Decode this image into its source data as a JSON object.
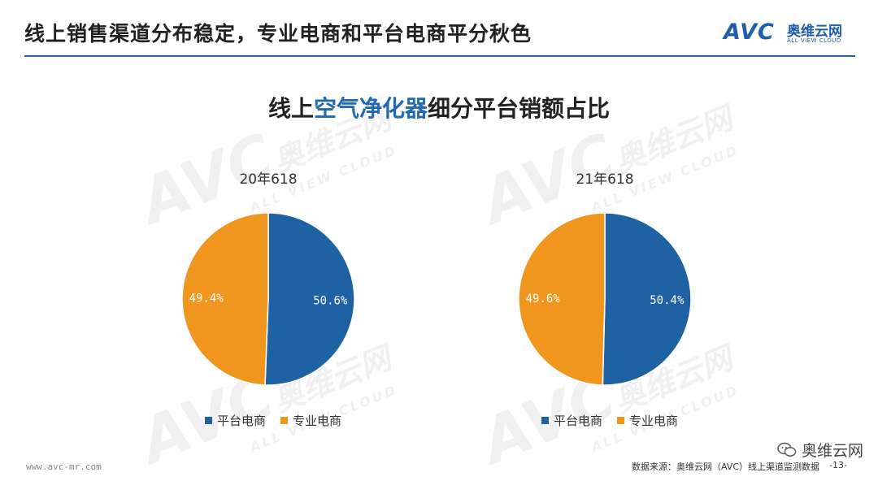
{
  "slide": {
    "title": "线上销售渠道分布稳定，专业电商和平台电商平分秋色"
  },
  "logo": {
    "mark": "AVC",
    "cn": "奥维云网",
    "en": "ALL VIEW CLOUD"
  },
  "watermark": {
    "mark": "AVC",
    "cn": "奥维云网",
    "en": "ALL VIEW CLOUD"
  },
  "chart_title": {
    "prefix": "线上",
    "highlight": "空气净化器",
    "suffix": "细分平台销额占比"
  },
  "colors": {
    "platform": "#1f62a3",
    "professional": "#f0961f",
    "accent": "#2a62a3"
  },
  "chart_data": [
    {
      "type": "pie",
      "title": "20年618",
      "labels": [
        "平台电商",
        "专业电商"
      ],
      "values": [
        50.6,
        49.4
      ],
      "value_labels": [
        "50.6%",
        "49.4%"
      ],
      "legend": "bottom"
    },
    {
      "type": "pie",
      "title": "21年618",
      "labels": [
        "平台电商",
        "专业电商"
      ],
      "values": [
        50.4,
        49.6
      ],
      "value_labels": [
        "50.4%",
        "49.6%"
      ],
      "legend": "bottom"
    }
  ],
  "footer": {
    "url": "www.avc-mr.com",
    "source": "数据来源：奥维云网（AVC）线上渠道监测数据",
    "page": "-13-",
    "wechat": "奥维云网"
  }
}
